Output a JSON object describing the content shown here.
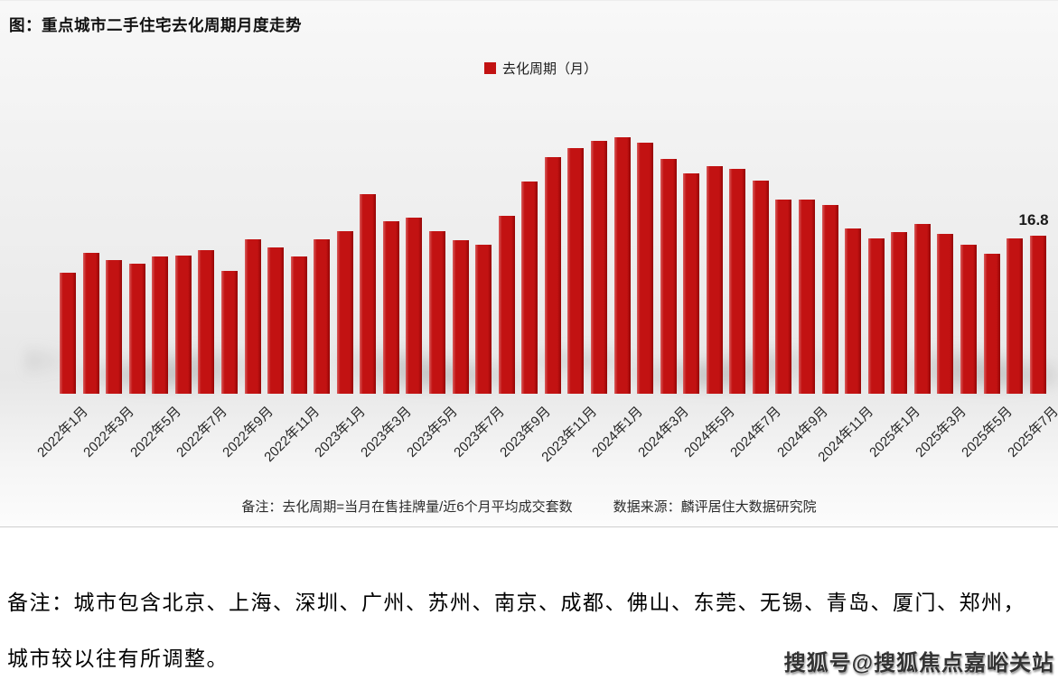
{
  "figure": {
    "title": "图：重点城市二手住宅去化周期月度走势",
    "legend": {
      "label": "去化周期（月）",
      "color": "#c21212"
    },
    "footnote": {
      "note": "备注：去化周期=当月在售挂牌量/近6个月平均成交套数",
      "source": "数据来源：麟评居住大数据研究院"
    }
  },
  "chart_data": {
    "type": "bar",
    "title": "重点城市二手住宅去化周期月度走势",
    "ylabel": "去化周期（月）",
    "ylim": [
      0,
      30
    ],
    "grid": false,
    "legend_position": "top-center",
    "bar_color": "#c21212",
    "tick_every": 2,
    "categories": [
      "2022年1月",
      "2022年2月",
      "2022年3月",
      "2022年4月",
      "2022年5月",
      "2022年6月",
      "2022年7月",
      "2022年8月",
      "2022年9月",
      "2022年10月",
      "2022年11月",
      "2022年12月",
      "2023年1月",
      "2023年2月",
      "2023年3月",
      "2023年4月",
      "2023年5月",
      "2023年6月",
      "2023年7月",
      "2023年8月",
      "2023年9月",
      "2023年10月",
      "2023年11月",
      "2023年12月",
      "2024年1月",
      "2024年2月",
      "2024年3月",
      "2024年4月",
      "2024年5月",
      "2024年6月",
      "2024年7月",
      "2024年8月",
      "2024年9月",
      "2024年10月",
      "2024年11月",
      "2024年12月",
      "2025年1月",
      "2025年2月",
      "2025年3月",
      "2025年4月",
      "2025年5月",
      "2025年6月",
      "2025年7月"
    ],
    "values": [
      12.9,
      15.0,
      14.2,
      13.8,
      14.6,
      14.7,
      15.3,
      13.1,
      16.4,
      15.6,
      14.6,
      16.4,
      17.3,
      21.2,
      18.3,
      18.7,
      17.3,
      16.3,
      15.8,
      18.9,
      22.6,
      25.2,
      26.1,
      26.9,
      27.3,
      26.7,
      25.0,
      23.4,
      24.2,
      23.9,
      22.7,
      20.6,
      20.6,
      20.1,
      17.6,
      16.5,
      17.2,
      18.1,
      17.0,
      15.8,
      14.9,
      16.5,
      16.8
    ],
    "x_tick_labels": [
      "2022年1月",
      "2022年3月",
      "2022年5月",
      "2022年7月",
      "2022年9月",
      "2022年11月",
      "2023年1月",
      "2023年3月",
      "2023年5月",
      "2023年7月",
      "2023年9月",
      "2023年11月",
      "2024年1月",
      "2024年3月",
      "2024年5月",
      "2024年7月",
      "2024年9月",
      "2024年11月",
      "2025年1月",
      "2025年3月",
      "2025年5月",
      "2025年7月"
    ],
    "annotation": {
      "index": 42,
      "label": "16.8",
      "value": 16.8
    }
  },
  "bottom_note": {
    "line1": "备注：城市包含北京、上海、深圳、广州、苏州、南京、成都、佛山、东莞、无锡、青岛、厦门、郑州，",
    "line2": "城市较以往有所调整。"
  },
  "watermark": "搜狐号@搜狐焦点嘉峪关站"
}
